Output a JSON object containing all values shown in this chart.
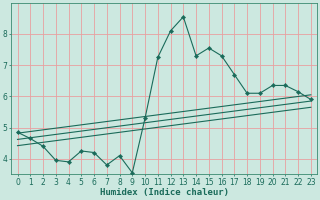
{
  "xlabel": "Humidex (Indice chaleur)",
  "bg_color": "#cce8e0",
  "grid_color": "#e8a0a0",
  "line_color": "#1a6b5a",
  "spine_color": "#3a8a70",
  "xlim": [
    -0.5,
    23.5
  ],
  "ylim": [
    3.5,
    9.0
  ],
  "yticks": [
    4,
    5,
    6,
    7,
    8
  ],
  "xticks": [
    0,
    1,
    2,
    3,
    4,
    5,
    6,
    7,
    8,
    9,
    10,
    11,
    12,
    13,
    14,
    15,
    16,
    17,
    18,
    19,
    20,
    21,
    22,
    23
  ],
  "main_x": [
    0,
    1,
    2,
    3,
    4,
    5,
    6,
    7,
    8,
    9,
    10,
    11,
    12,
    13,
    14,
    15,
    16,
    17,
    18,
    19,
    20,
    21,
    22,
    23
  ],
  "main_y": [
    4.85,
    4.65,
    4.4,
    3.95,
    3.9,
    4.25,
    4.2,
    3.8,
    4.1,
    3.55,
    5.3,
    7.25,
    8.1,
    8.55,
    7.3,
    7.55,
    7.3,
    6.7,
    6.1,
    6.1,
    6.35,
    6.35,
    6.15,
    5.9
  ],
  "line1_x": [
    0,
    23
  ],
  "line1_y": [
    4.82,
    6.05
  ],
  "line2_x": [
    0,
    23
  ],
  "line2_y": [
    4.62,
    5.85
  ],
  "line3_x": [
    0,
    23
  ],
  "line3_y": [
    4.42,
    5.65
  ],
  "tick_fontsize": 5.5,
  "xlabel_fontsize": 6.5,
  "linewidth": 0.8,
  "markersize": 2.2
}
